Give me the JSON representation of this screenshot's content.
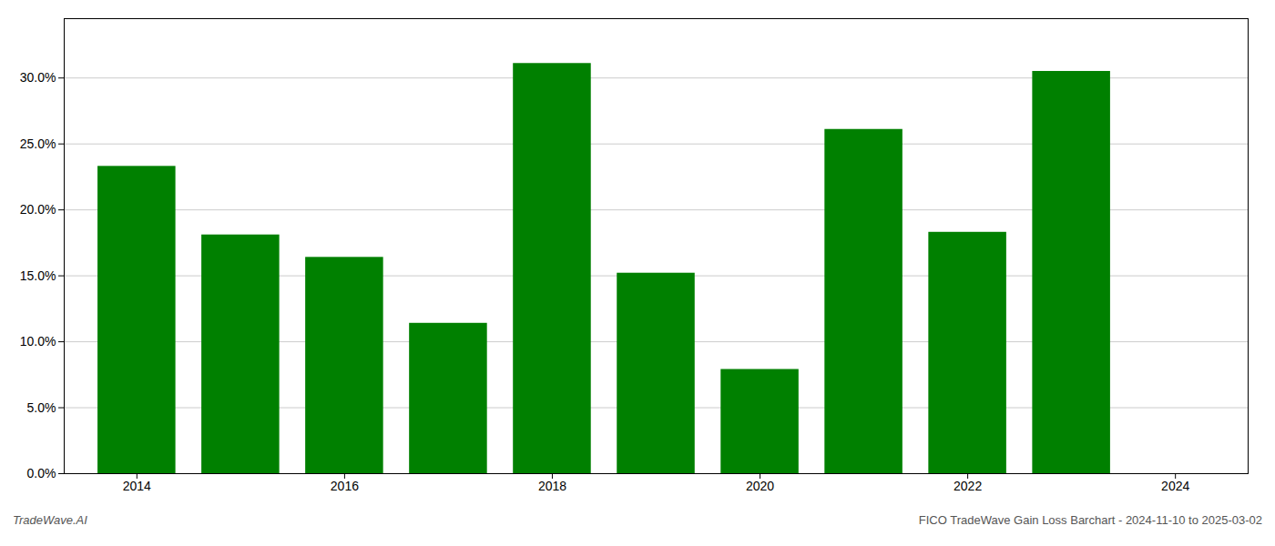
{
  "chart_data": {
    "type": "bar",
    "x": [
      2014,
      2015,
      2016,
      2017,
      2018,
      2019,
      2020,
      2021,
      2022,
      2023
    ],
    "values": [
      0.233,
      0.181,
      0.164,
      0.114,
      0.311,
      0.152,
      0.079,
      0.261,
      0.183,
      0.305
    ],
    "color": "#008000",
    "xlim": [
      2013.3,
      2024.7
    ],
    "xticks": [
      2014,
      2016,
      2018,
      2020,
      2022,
      2024
    ],
    "ylim": [
      0,
      0.345
    ],
    "yticks": [
      {
        "value": 0.0,
        "label": "0.0%"
      },
      {
        "value": 0.05,
        "label": "5.0%"
      },
      {
        "value": 0.1,
        "label": "10.0%"
      },
      {
        "value": 0.15,
        "label": "15.0%"
      },
      {
        "value": 0.2,
        "label": "20.0%"
      },
      {
        "value": 0.25,
        "label": "25.0%"
      },
      {
        "value": 0.3,
        "label": "30.0%"
      }
    ],
    "grid": true,
    "annotations": [
      "TradeWave.AI",
      "FICO TradeWave Gain Loss Barchart - 2024-11-10 to 2025-03-02"
    ]
  }
}
